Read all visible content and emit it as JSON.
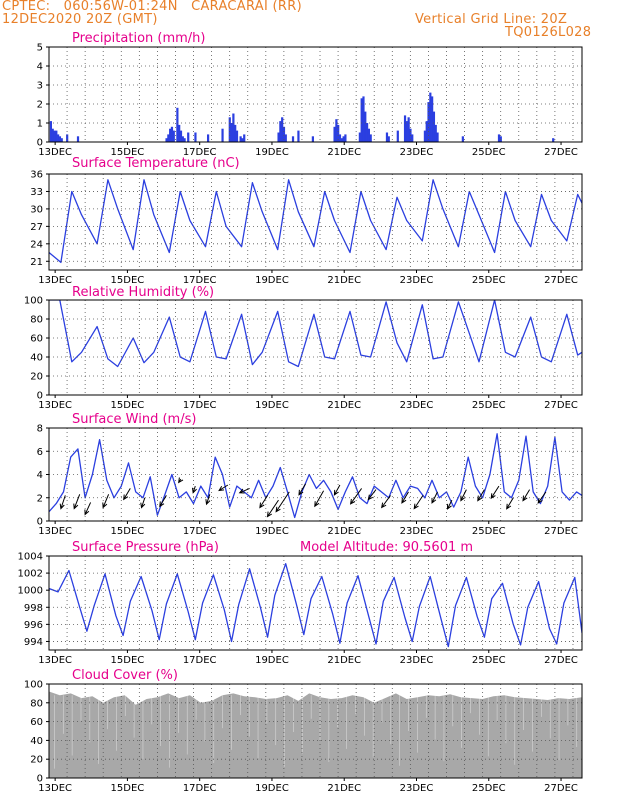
{
  "header": {
    "line1": "CPTEC:   060:56W-01:24N   CARACARAI (RR)",
    "line2": "12DEC2020 20Z (GMT)",
    "grid_note": "Vertical Grid Line: 20Z",
    "model_id": "TQ0126L028"
  },
  "colors": {
    "header": "#e8802a",
    "title": "#e6008c",
    "line": "#2b3fe0",
    "cloud": "#a8a8a8",
    "wind_arrow": "#000000"
  },
  "chart_data": [
    {
      "type": "bar",
      "title": "Precipitation (mm/h)",
      "ylim": [
        0,
        5
      ],
      "yticks": [
        0,
        1,
        2,
        3,
        4,
        5
      ],
      "xlim": [
        0,
        14.75
      ],
      "xticks": [
        "13DEC",
        "15DEC",
        "17DEC",
        "19DEC",
        "21DEC",
        "23DEC",
        "25DEC",
        "27DEC"
      ],
      "x": [
        0.05,
        0.1,
        0.15,
        0.2,
        0.25,
        0.3,
        0.35,
        0.5,
        0.8,
        3.25,
        3.3,
        3.35,
        3.4,
        3.45,
        3.55,
        3.6,
        3.65,
        3.7,
        3.75,
        3.85,
        4.05,
        4.4,
        4.8,
        5.0,
        5.05,
        5.1,
        5.15,
        5.2,
        5.3,
        5.35,
        5.4,
        6.35,
        6.4,
        6.45,
        6.5,
        6.55,
        6.75,
        6.9,
        7.3,
        7.9,
        7.95,
        8.0,
        8.05,
        8.1,
        8.15,
        8.2,
        8.6,
        8.65,
        8.7,
        8.75,
        8.8,
        8.85,
        8.9,
        9.35,
        9.4,
        9.65,
        9.85,
        9.9,
        9.95,
        10.0,
        10.05,
        10.4,
        10.45,
        10.5,
        10.55,
        10.6,
        10.65,
        10.7,
        10.75,
        11.45,
        12.45,
        12.5,
        13.95
      ],
      "values": [
        1.1,
        0.7,
        0.6,
        0.6,
        0.4,
        0.3,
        0.2,
        0.4,
        0.3,
        0.2,
        0.4,
        0.7,
        0.8,
        0.6,
        1.8,
        0.9,
        0.6,
        0.3,
        0.2,
        0.5,
        0.5,
        0.4,
        0.7,
        1.3,
        1.0,
        1.5,
        0.9,
        0.6,
        0.3,
        0.2,
        0.4,
        0.5,
        1.1,
        1.3,
        0.8,
        0.4,
        0.3,
        0.6,
        0.3,
        0.8,
        1.2,
        0.9,
        0.4,
        0.2,
        0.3,
        0.4,
        0.5,
        2.3,
        2.4,
        1.6,
        1.0,
        0.7,
        0.4,
        0.5,
        0.3,
        0.6,
        1.4,
        1.1,
        1.3,
        0.7,
        0.4,
        0.6,
        1.1,
        2.1,
        2.6,
        2.4,
        1.6,
        0.9,
        0.5,
        0.3,
        0.4,
        0.3,
        0.2
      ]
    },
    {
      "type": "line",
      "title": "Surface Temperature (nC)",
      "ylim": [
        19.5,
        36
      ],
      "yticks": [
        21,
        24,
        27,
        30,
        33,
        36
      ],
      "xlim": [
        0,
        14.75
      ],
      "xticks": [
        "13DEC",
        "15DEC",
        "17DEC",
        "19DEC",
        "21DEC",
        "23DEC",
        "25DEC",
        "27DEC"
      ],
      "x": [
        0.0,
        0.33,
        0.63,
        0.9,
        1.33,
        1.63,
        1.9,
        2.33,
        2.63,
        2.9,
        3.33,
        3.63,
        3.9,
        4.33,
        4.63,
        4.9,
        5.33,
        5.63,
        5.9,
        6.33,
        6.63,
        6.9,
        7.33,
        7.63,
        7.9,
        8.33,
        8.63,
        8.9,
        9.33,
        9.63,
        9.9,
        10.33,
        10.63,
        10.9,
        11.33,
        11.63,
        11.9,
        12.33,
        12.63,
        12.9,
        13.33,
        13.63,
        13.9,
        14.33,
        14.63,
        14.75
      ],
      "values": [
        22.5,
        20.8,
        33.0,
        29.0,
        24.0,
        35.0,
        30.0,
        23.0,
        35.0,
        29.0,
        22.5,
        33.0,
        28.0,
        23.5,
        33.0,
        27.0,
        23.5,
        34.5,
        29.5,
        23.0,
        35.0,
        29.5,
        23.5,
        33.0,
        28.0,
        22.5,
        33.0,
        28.0,
        23.0,
        32.0,
        28.0,
        24.5,
        35.0,
        30.0,
        23.5,
        33.0,
        29.0,
        22.5,
        33.0,
        28.0,
        23.5,
        32.5,
        28.0,
        24.5,
        32.5,
        31.0
      ]
    },
    {
      "type": "line",
      "title": "Relative Humidity (%)",
      "ylim": [
        0,
        100
      ],
      "yticks": [
        0,
        20,
        40,
        60,
        80,
        100
      ],
      "xlim": [
        0,
        14.75
      ],
      "xticks": [
        "13DEC",
        "15DEC",
        "17DEC",
        "19DEC",
        "21DEC",
        "23DEC",
        "25DEC",
        "27DEC"
      ],
      "x": [
        0.0,
        0.3,
        0.63,
        0.9,
        1.33,
        1.63,
        1.9,
        2.33,
        2.63,
        2.9,
        3.33,
        3.63,
        3.9,
        4.33,
        4.63,
        4.9,
        5.33,
        5.63,
        5.9,
        6.33,
        6.63,
        6.9,
        7.33,
        7.63,
        7.9,
        8.33,
        8.63,
        8.9,
        9.33,
        9.63,
        9.9,
        10.33,
        10.63,
        10.9,
        11.33,
        11.63,
        11.9,
        12.33,
        12.63,
        12.9,
        13.33,
        13.63,
        13.9,
        14.33,
        14.63,
        14.75
      ],
      "values": [
        100,
        100,
        35,
        45,
        72,
        38,
        30,
        60,
        34,
        45,
        82,
        40,
        35,
        88,
        40,
        38,
        85,
        32,
        45,
        88,
        35,
        30,
        85,
        40,
        38,
        88,
        42,
        40,
        98,
        55,
        35,
        95,
        38,
        40,
        98,
        65,
        35,
        100,
        45,
        40,
        82,
        40,
        35,
        85,
        42,
        45
      ]
    },
    {
      "type": "line",
      "title": "Surface Wind (m/s)",
      "ylim": [
        0,
        8
      ],
      "yticks": [
        0,
        2,
        4,
        6,
        8
      ],
      "xlim": [
        0,
        14.75
      ],
      "xticks": [
        "13DEC",
        "15DEC",
        "17DEC",
        "19DEC",
        "21DEC",
        "23DEC",
        "25DEC",
        "27DEC"
      ],
      "x": [
        0.0,
        0.2,
        0.4,
        0.6,
        0.8,
        1.0,
        1.2,
        1.4,
        1.6,
        1.8,
        2.0,
        2.2,
        2.4,
        2.6,
        2.8,
        3.0,
        3.2,
        3.4,
        3.6,
        3.8,
        4.0,
        4.2,
        4.4,
        4.6,
        4.8,
        5.0,
        5.2,
        5.4,
        5.6,
        5.8,
        6.0,
        6.2,
        6.4,
        6.6,
        6.8,
        7.0,
        7.2,
        7.4,
        7.6,
        7.8,
        8.0,
        8.2,
        8.4,
        8.6,
        8.8,
        9.0,
        9.2,
        9.4,
        9.6,
        9.8,
        10.0,
        10.2,
        10.4,
        10.6,
        10.8,
        11.0,
        11.2,
        11.4,
        11.6,
        11.8,
        12.0,
        12.2,
        12.4,
        12.6,
        12.8,
        13.0,
        13.2,
        13.4,
        13.6,
        13.8,
        14.0,
        14.2,
        14.4,
        14.6,
        14.75
      ],
      "values": [
        0.8,
        1.5,
        2.5,
        5.5,
        6.2,
        2.0,
        4.0,
        7.0,
        3.5,
        2.0,
        3.0,
        5.0,
        2.5,
        2.0,
        3.8,
        0.5,
        2.2,
        4.0,
        2.0,
        2.5,
        1.5,
        3.0,
        2.0,
        5.5,
        4.0,
        1.2,
        3.0,
        2.5,
        2.0,
        3.5,
        2.0,
        3.0,
        4.6,
        2.5,
        0.3,
        2.5,
        4.0,
        2.8,
        3.5,
        2.5,
        1.0,
        2.5,
        3.8,
        2.0,
        1.5,
        3.0,
        2.5,
        2.0,
        3.5,
        2.0,
        3.0,
        2.8,
        2.0,
        3.5,
        2.0,
        2.5,
        1.2,
        2.5,
        5.5,
        3.0,
        2.0,
        4.0,
        7.5,
        2.5,
        2.0,
        3.5,
        7.3,
        2.5,
        1.5,
        3.0,
        7.2,
        2.5,
        1.8,
        2.5,
        2.2
      ],
      "wind_arrows": [
        {
          "x": 0.45,
          "y": 2.2,
          "u": -0.4,
          "v": -1.2
        },
        {
          "x": 0.85,
          "y": 2.3,
          "u": -0.5,
          "v": -1.3
        },
        {
          "x": 1.15,
          "y": 1.6,
          "u": -0.5,
          "v": -1.1
        },
        {
          "x": 1.65,
          "y": 2.3,
          "u": -0.5,
          "v": -1.2
        },
        {
          "x": 2.25,
          "y": 2.8,
          "u": -0.6,
          "v": -1.0
        },
        {
          "x": 2.65,
          "y": 2.0,
          "u": -0.3,
          "v": -0.9
        },
        {
          "x": 3.25,
          "y": 2.2,
          "u": -0.6,
          "v": -1.0
        },
        {
          "x": 3.65,
          "y": 3.6,
          "u": -0.2,
          "v": -0.3
        },
        {
          "x": 4.05,
          "y": 3.0,
          "u": -0.2,
          "v": -0.6
        },
        {
          "x": 4.45,
          "y": 2.3,
          "u": -0.3,
          "v": -0.9
        },
        {
          "x": 4.95,
          "y": 3.1,
          "u": -0.8,
          "v": -0.5
        },
        {
          "x": 5.55,
          "y": 2.8,
          "u": -0.9,
          "v": -0.4
        },
        {
          "x": 6.05,
          "y": 2.2,
          "u": -0.7,
          "v": -1.1
        },
        {
          "x": 6.35,
          "y": 1.8,
          "u": -1.0,
          "v": -1.5
        },
        {
          "x": 6.65,
          "y": 2.5,
          "u": -1.2,
          "v": -1.8
        },
        {
          "x": 7.1,
          "y": 3.2,
          "u": -0.6,
          "v": -1.0
        },
        {
          "x": 7.6,
          "y": 2.6,
          "u": -0.8,
          "v": -1.4
        },
        {
          "x": 8.05,
          "y": 3.1,
          "u": -0.5,
          "v": -0.9
        },
        {
          "x": 8.65,
          "y": 2.8,
          "u": -1.0,
          "v": -1.4
        },
        {
          "x": 9.05,
          "y": 2.7,
          "u": -0.7,
          "v": -0.9
        },
        {
          "x": 9.45,
          "y": 2.2,
          "u": -0.8,
          "v": -1.1
        },
        {
          "x": 9.95,
          "y": 2.5,
          "u": -0.6,
          "v": -1.0
        },
        {
          "x": 10.35,
          "y": 2.2,
          "u": -0.8,
          "v": -1.2
        },
        {
          "x": 10.75,
          "y": 2.5,
          "u": -0.5,
          "v": -1.0
        },
        {
          "x": 11.15,
          "y": 1.8,
          "u": -0.4,
          "v": -0.8
        },
        {
          "x": 11.55,
          "y": 2.7,
          "u": -0.5,
          "v": -1.0
        },
        {
          "x": 12.05,
          "y": 2.7,
          "u": -0.6,
          "v": -1.0
        },
        {
          "x": 12.45,
          "y": 3.0,
          "u": -0.7,
          "v": -1.1
        },
        {
          "x": 12.85,
          "y": 2.0,
          "u": -0.6,
          "v": -1.0
        },
        {
          "x": 13.3,
          "y": 2.7,
          "u": -0.6,
          "v": -1.0
        },
        {
          "x": 13.75,
          "y": 2.5,
          "u": -0.7,
          "v": -1.0
        }
      ]
    },
    {
      "type": "line",
      "title": "Surface Pressure (hPa)",
      "annotation": "Model Altitude: 90.5601 m",
      "ylim": [
        993,
        1004
      ],
      "yticks": [
        994,
        996,
        998,
        1000,
        1002,
        1004
      ],
      "xlim": [
        0,
        14.75
      ],
      "xticks": [
        "13DEC",
        "15DEC",
        "17DEC",
        "19DEC",
        "21DEC",
        "23DEC",
        "25DEC",
        "27DEC"
      ],
      "x": [
        0.0,
        0.25,
        0.55,
        0.85,
        1.05,
        1.25,
        1.55,
        1.85,
        2.05,
        2.25,
        2.55,
        2.85,
        3.05,
        3.25,
        3.55,
        3.85,
        4.05,
        4.25,
        4.55,
        4.85,
        5.05,
        5.25,
        5.55,
        5.85,
        6.05,
        6.25,
        6.55,
        6.85,
        7.05,
        7.25,
        7.55,
        7.85,
        8.05,
        8.25,
        8.55,
        8.85,
        9.05,
        9.25,
        9.55,
        9.85,
        10.05,
        10.25,
        10.55,
        10.85,
        11.05,
        11.25,
        11.55,
        11.85,
        12.05,
        12.25,
        12.55,
        12.85,
        13.05,
        13.25,
        13.55,
        13.85,
        14.05,
        14.25,
        14.55,
        14.75
      ],
      "values": [
        1000.2,
        999.8,
        1002.3,
        998.0,
        995.2,
        998.2,
        1001.9,
        997.0,
        994.7,
        998.7,
        1001.6,
        997.6,
        994.2,
        998.4,
        1001.9,
        997.5,
        994.2,
        998.5,
        1001.8,
        997.7,
        994.0,
        998.3,
        1002.5,
        998.0,
        994.5,
        999.4,
        1003.1,
        998.3,
        994.8,
        999.0,
        1001.6,
        997.2,
        993.8,
        998.5,
        1001.7,
        996.9,
        993.7,
        998.7,
        1001.5,
        996.8,
        994.0,
        998.1,
        1001.6,
        996.6,
        993.4,
        998.2,
        1001.5,
        996.9,
        994.5,
        999.0,
        1000.8,
        996.0,
        993.6,
        998.0,
        1001.0,
        995.5,
        993.7,
        998.5,
        1001.5,
        995.0
      ]
    },
    {
      "type": "area",
      "title": "Cloud Cover (%)",
      "ylim": [
        0,
        100
      ],
      "yticks": [
        0,
        20,
        40,
        60,
        80,
        100
      ],
      "xlim": [
        0,
        14.75
      ],
      "xticks": [
        "13DEC",
        "15DEC",
        "17DEC",
        "19DEC",
        "21DEC",
        "23DEC",
        "25DEC",
        "27DEC"
      ],
      "x": [
        0.0,
        0.3,
        0.6,
        0.9,
        1.2,
        1.5,
        1.8,
        2.1,
        2.4,
        2.7,
        3.0,
        3.3,
        3.6,
        3.9,
        4.2,
        4.5,
        4.8,
        5.1,
        5.4,
        5.7,
        6.0,
        6.3,
        6.6,
        6.9,
        7.2,
        7.5,
        7.8,
        8.1,
        8.4,
        8.7,
        9.0,
        9.3,
        9.6,
        9.9,
        10.2,
        10.5,
        10.8,
        11.1,
        11.4,
        11.7,
        12.0,
        12.3,
        12.6,
        12.9,
        13.2,
        13.5,
        13.8,
        14.1,
        14.4,
        14.75
      ],
      "values": [
        92,
        88,
        90,
        85,
        87,
        80,
        86,
        88,
        78,
        84,
        86,
        90,
        85,
        88,
        80,
        82,
        88,
        90,
        87,
        86,
        84,
        85,
        88,
        82,
        90,
        86,
        84,
        85,
        88,
        86,
        80,
        85,
        90,
        84,
        86,
        88,
        87,
        89,
        86,
        85,
        84,
        87,
        88,
        86,
        85,
        84,
        83,
        85,
        84,
        86
      ]
    }
  ]
}
